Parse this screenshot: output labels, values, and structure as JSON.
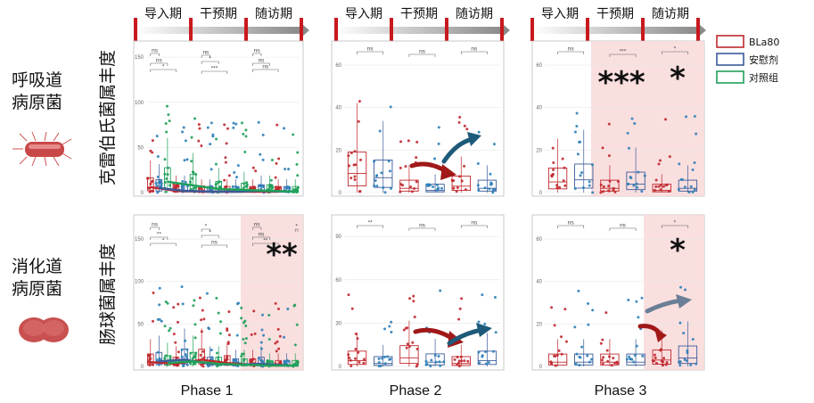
{
  "timeline": {
    "stages": [
      "导入期",
      "干预期",
      "随访期"
    ]
  },
  "rows": [
    {
      "label_line1": "呼吸道",
      "label_line2": "病原菌",
      "ylabel": "克雷伯氏菌属丰度",
      "icon": "bacillus-bacterium-icon"
    },
    {
      "label_line1": "消化道",
      "label_line2": "病原菌",
      "ylabel": "肠球菌属丰度",
      "icon": "coccus-bacterium-icon"
    }
  ],
  "phases": [
    "Phase 1",
    "Phase 2",
    "Phase 3"
  ],
  "legend": [
    {
      "label": "BLa80",
      "color": "#c0282d"
    },
    {
      "label": "安慰剂",
      "color": "#3b5b9a"
    },
    {
      "label": "对照组",
      "color": "#1fa05a"
    }
  ],
  "colors": {
    "bla80": "#c0282d",
    "placebo": "#3b5b9a",
    "control": "#1fa05a",
    "bluepoint": "#2e7fb8",
    "highlight": "#f9d9d9",
    "arrow_red": "#a01818",
    "arrow_blue": "#1e5a7a",
    "arrow_gray": "#6a7f96"
  },
  "chart_data": [
    {
      "id": "klebsiella-phase1",
      "type": "box",
      "ylabel": "克雷伯氏菌属丰度",
      "yticks": [
        0,
        50,
        100,
        150
      ],
      "ylim": [
        0,
        160
      ],
      "groups": [
        "BLa80",
        "安慰剂",
        "对照组"
      ],
      "timepoints": 6,
      "medians": [
        [
          6,
          2,
          1,
          1,
          1,
          1
        ],
        [
          5,
          2,
          1,
          1,
          2,
          1
        ],
        [
          12,
          8,
          4,
          3,
          2,
          1
        ]
      ],
      "brackets": [
        {
          "label": "ns"
        },
        {
          "label": "ns"
        },
        {
          "label": "*"
        },
        {
          "label": "ns"
        },
        {
          "label": "*"
        },
        {
          "label": "***"
        },
        {
          "label": "ns"
        },
        {
          "label": "ns"
        },
        {
          "label": "ns"
        }
      ],
      "highlight": false,
      "big_sig": ""
    },
    {
      "id": "klebsiella-phase2",
      "type": "box",
      "yticks": [
        0,
        20,
        40,
        60
      ],
      "ylim": [
        0,
        68
      ],
      "medians": [
        [
          9,
          2,
          3
        ],
        [
          7,
          1,
          2
        ]
      ],
      "brackets": [
        {
          "label": "ns"
        },
        {
          "label": "ns"
        },
        {
          "label": "ns"
        }
      ],
      "highlight": false,
      "big_sig": ""
    },
    {
      "id": "klebsiella-phase3",
      "type": "box",
      "yticks": [
        0,
        20,
        40,
        60
      ],
      "ylim": [
        0,
        68
      ],
      "medians": [
        [
          5,
          2,
          1
        ],
        [
          6,
          4,
          2
        ]
      ],
      "brackets": [
        {
          "label": "ns"
        },
        {
          "label": "***"
        },
        {
          "label": "*"
        }
      ],
      "highlight": true,
      "big_sig": "*** *"
    },
    {
      "id": "enterococcus-phase1",
      "type": "box",
      "ylabel": "肠球菌属丰度",
      "yticks": [
        0,
        50,
        100,
        150
      ],
      "ylim": [
        0,
        170
      ],
      "medians": [
        [
          5,
          3,
          8,
          4,
          2,
          1
        ],
        [
          6,
          8,
          3,
          2,
          3,
          1
        ],
        [
          4,
          6,
          3,
          2,
          1,
          1
        ]
      ],
      "brackets": [
        {
          "label": "ns"
        },
        {
          "label": "**"
        },
        {
          "label": "*"
        },
        {
          "label": "*"
        },
        {
          "label": "*"
        },
        {
          "label": "ns"
        },
        {
          "label": "ns"
        },
        {
          "label": "ns"
        },
        {
          "label": "**"
        },
        {
          "label": "*"
        }
      ],
      "highlight": true,
      "big_sig": "**"
    },
    {
      "id": "enterococcus-phase2",
      "type": "box",
      "yticks": [
        0,
        30,
        60,
        90
      ],
      "ylim": [
        0,
        100
      ],
      "medians": [
        [
          4,
          6,
          2
        ],
        [
          2,
          3,
          4
        ]
      ],
      "brackets": [
        {
          "label": "**"
        },
        {
          "label": "ns"
        },
        {
          "label": "ns"
        }
      ],
      "highlight": false,
      "big_sig": ""
    },
    {
      "id": "enterococcus-phase3",
      "type": "box",
      "yticks": [
        0,
        20,
        40,
        60
      ],
      "ylim": [
        0,
        68
      ],
      "medians": [
        [
          2,
          2,
          3
        ],
        [
          2,
          2,
          4
        ]
      ],
      "brackets": [
        {
          "label": "ns"
        },
        {
          "label": "ns"
        },
        {
          "label": "*"
        }
      ],
      "highlight": true,
      "big_sig": "*"
    }
  ]
}
